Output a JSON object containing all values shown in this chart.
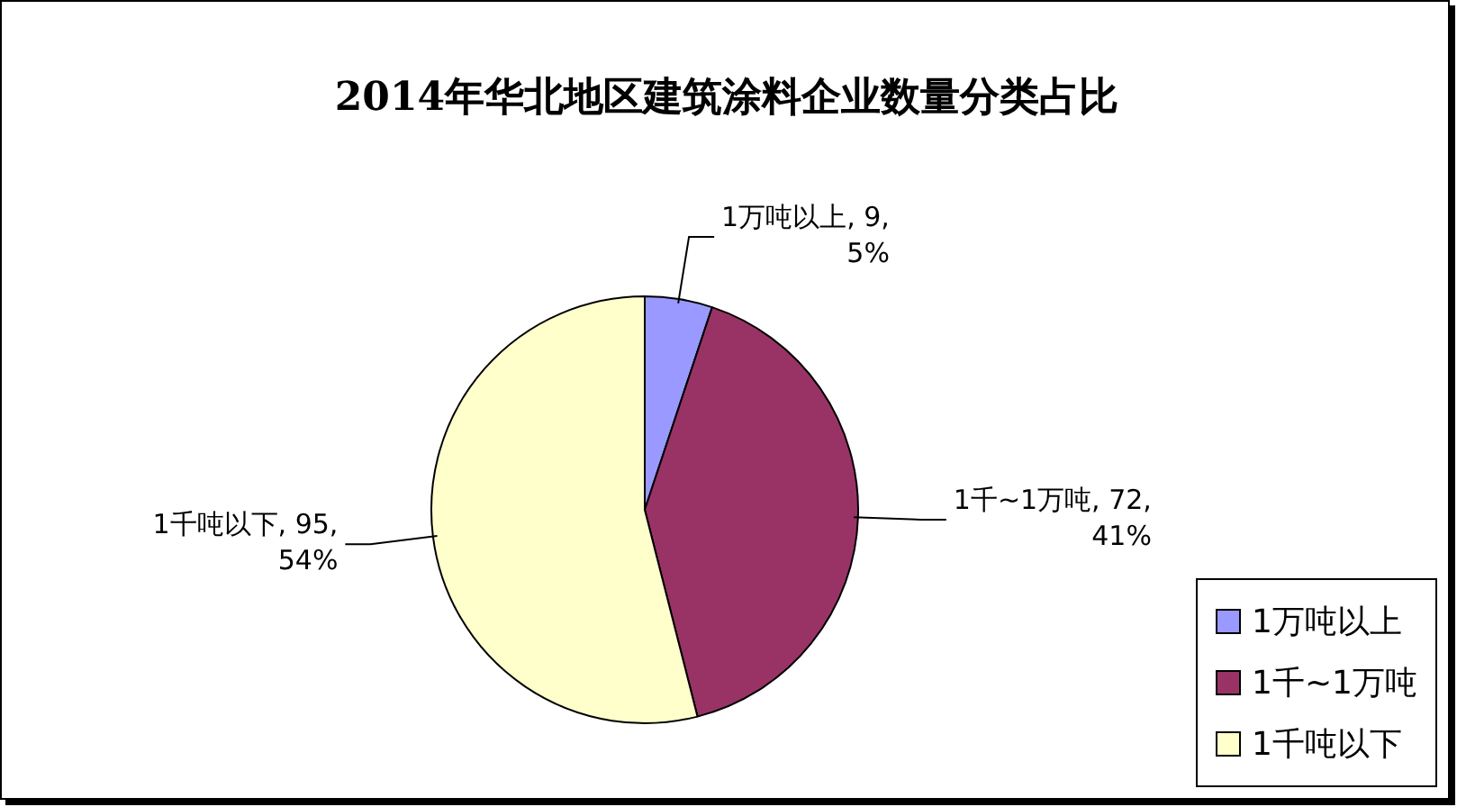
{
  "chart_data": {
    "type": "pie",
    "title": "2014年华北地区建筑涂料企业数量分类占比",
    "categories": [
      "1万吨以上",
      "1千~1万吨",
      "1千吨以下"
    ],
    "values": [
      9,
      72,
      95
    ],
    "value_labels": [
      "1万吨以上, 9, 5%",
      "1千~1万吨, 72, 41%",
      "1千吨以下, 95, 54%"
    ],
    "colors": [
      "#9999ff",
      "#993366",
      "#ffffcc"
    ],
    "legend": "bottom right"
  }
}
